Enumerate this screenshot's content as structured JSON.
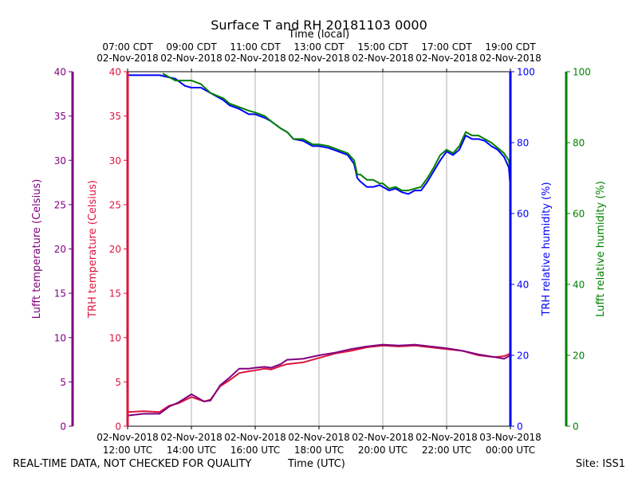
{
  "footer": {
    "quality_note": "REAL-TIME DATA, NOT CHECKED FOR QUALITY",
    "time_label": "Time (UTC)",
    "site": "Site: ISS1"
  },
  "colors": {
    "lufft_temp": "#800080",
    "trh_temp": "#dc143c",
    "trh_rh": "#0000ff",
    "lufft_rh": "#008000",
    "grid": "#b0b0b0"
  },
  "chart_data": {
    "type": "line",
    "title": "Surface T and RH 20181103 0000",
    "x_unit": "hours UTC since 02-Nov-2018 00:00",
    "xlim": [
      12,
      24
    ],
    "top_axis": {
      "label": "Time (local)",
      "ticks": [
        {
          "x": 12,
          "line1": "07:00 CDT",
          "line2": "02-Nov-2018"
        },
        {
          "x": 14,
          "line1": "09:00 CDT",
          "line2": "02-Nov-2018"
        },
        {
          "x": 16,
          "line1": "11:00 CDT",
          "line2": "02-Nov-2018"
        },
        {
          "x": 18,
          "line1": "13:00 CDT",
          "line2": "02-Nov-2018"
        },
        {
          "x": 20,
          "line1": "15:00 CDT",
          "line2": "02-Nov-2018"
        },
        {
          "x": 22,
          "line1": "17:00 CDT",
          "line2": "02-Nov-2018"
        },
        {
          "x": 24,
          "line1": "19:00 CDT",
          "line2": "02-Nov-2018"
        }
      ]
    },
    "bottom_axis": {
      "label": "Time (UTC)",
      "ticks": [
        {
          "x": 12,
          "line1": "02-Nov-2018",
          "line2": "12:00 UTC"
        },
        {
          "x": 14,
          "line1": "02-Nov-2018",
          "line2": "14:00 UTC"
        },
        {
          "x": 16,
          "line1": "02-Nov-2018",
          "line2": "16:00 UTC"
        },
        {
          "x": 18,
          "line1": "02-Nov-2018",
          "line2": "18:00 UTC"
        },
        {
          "x": 20,
          "line1": "02-Nov-2018",
          "line2": "20:00 UTC"
        },
        {
          "x": 22,
          "line1": "02-Nov-2018",
          "line2": "22:00 UTC"
        },
        {
          "x": 24,
          "line1": "03-Nov-2018",
          "line2": "00:00 UTC"
        }
      ]
    },
    "y_axes": {
      "lufft_temp": {
        "label": "Lufft temperature (Celsius)",
        "ylim": [
          0,
          40
        ],
        "ticks": [
          0,
          5,
          10,
          15,
          20,
          25,
          30,
          35,
          40
        ]
      },
      "trh_temp": {
        "label": "TRH temperature (Celsius)",
        "ylim": [
          0,
          40
        ],
        "ticks": [
          0,
          5,
          10,
          15,
          20,
          25,
          30,
          35,
          40
        ]
      },
      "trh_rh": {
        "label": "TRH relative humidity (%)",
        "ylim": [
          0,
          100
        ],
        "ticks": [
          0,
          20,
          40,
          60,
          80,
          100
        ]
      },
      "lufft_rh": {
        "label": "Lufft relative humidity (%)",
        "ylim": [
          0,
          100
        ],
        "ticks": [
          0,
          20,
          40,
          60,
          80,
          100
        ]
      }
    },
    "grid": "vertical",
    "series": [
      {
        "name": "TRH relative humidity",
        "key": "trh_rh",
        "axis": "trh_rh",
        "x": [
          12,
          12.5,
          13,
          13.5,
          13.8,
          14,
          14.3,
          14.6,
          15,
          15.2,
          15.5,
          15.8,
          16,
          16.3,
          16.5,
          16.8,
          17,
          17.2,
          17.5,
          17.8,
          18,
          18.3,
          18.6,
          18.9,
          19.1,
          19.2,
          19.3,
          19.5,
          19.7,
          19.9,
          20,
          20.2,
          20.4,
          20.6,
          20.8,
          21,
          21.2,
          21.4,
          21.6,
          21.8,
          22,
          22.2,
          22.4,
          22.6,
          22.8,
          23,
          23.2,
          23.4,
          23.6,
          23.8,
          23.95,
          24
        ],
        "values": [
          99,
          99,
          99,
          98,
          96,
          95.5,
          95.5,
          94,
          92,
          90.5,
          89.5,
          88,
          88,
          87,
          86,
          84,
          83,
          81,
          80.5,
          79,
          79,
          78.5,
          77.5,
          76.5,
          74,
          70,
          69,
          67.5,
          67.5,
          68,
          67.5,
          66.5,
          67,
          66,
          65.5,
          66.5,
          66.5,
          69,
          72,
          75,
          77.5,
          76.5,
          78,
          82,
          81,
          81,
          80.5,
          79,
          78,
          76,
          73,
          67.5
        ]
      },
      {
        "name": "Lufft relative humidity",
        "key": "lufft_rh",
        "axis": "lufft_rh",
        "x": [
          13.1,
          13.3,
          13.5,
          13.8,
          14,
          14.3,
          14.6,
          15,
          15.2,
          15.5,
          15.8,
          16,
          16.3,
          16.5,
          16.8,
          17,
          17.2,
          17.5,
          17.8,
          18,
          18.3,
          18.6,
          18.9,
          19.1,
          19.2,
          19.3,
          19.5,
          19.7,
          19.9,
          20,
          20.2,
          20.4,
          20.6,
          20.8,
          21,
          21.2,
          21.4,
          21.6,
          21.8,
          22,
          22.2,
          22.4,
          22.6,
          22.8,
          23,
          23.2,
          23.4,
          23.6,
          23.8,
          23.95,
          24
        ],
        "values": [
          99.5,
          98.5,
          97.5,
          97.5,
          97.5,
          96.5,
          94,
          92.5,
          91,
          90,
          89,
          88.5,
          87.5,
          86,
          84,
          83,
          81,
          81,
          79.5,
          79.5,
          79,
          78,
          77,
          75,
          71,
          71,
          69.5,
          69.5,
          68.5,
          68.5,
          67,
          67.5,
          66.5,
          66.5,
          67,
          67.5,
          70,
          73,
          76.5,
          78,
          77,
          79,
          83,
          82,
          82,
          81,
          80,
          78.5,
          77,
          75,
          72
        ]
      },
      {
        "name": "TRH temperature",
        "key": "trh_temp",
        "axis": "trh_temp",
        "x": [
          12,
          12.5,
          13,
          13.3,
          13.6,
          14,
          14.4,
          14.6,
          14.9,
          15.2,
          15.5,
          15.8,
          16,
          16.3,
          16.5,
          16.8,
          17,
          17.5,
          18,
          18.5,
          19,
          19.5,
          20,
          20.5,
          21,
          21.5,
          22,
          22.5,
          23,
          23.5,
          23.8,
          24
        ],
        "values": [
          1.6,
          1.7,
          1.6,
          2.3,
          2.6,
          3.3,
          2.8,
          3.0,
          4.5,
          5.2,
          6.0,
          6.2,
          6.3,
          6.5,
          6.4,
          6.8,
          7.0,
          7.2,
          7.7,
          8.2,
          8.5,
          8.9,
          9.1,
          9.0,
          9.1,
          8.9,
          8.7,
          8.5,
          8.0,
          7.8,
          7.9,
          8.2
        ]
      },
      {
        "name": "Lufft temperature",
        "key": "lufft_temp",
        "axis": "lufft_temp",
        "x": [
          12,
          12.5,
          13,
          13.3,
          13.6,
          14,
          14.4,
          14.6,
          14.9,
          15.2,
          15.5,
          15.8,
          16,
          16.3,
          16.5,
          16.8,
          17,
          17.5,
          18,
          18.5,
          19,
          19.5,
          20,
          20.5,
          21,
          21.5,
          22,
          22.5,
          23,
          23.5,
          23.8,
          24
        ],
        "values": [
          1.2,
          1.4,
          1.4,
          2.2,
          2.7,
          3.6,
          2.8,
          2.9,
          4.6,
          5.5,
          6.5,
          6.5,
          6.6,
          6.7,
          6.6,
          7.0,
          7.5,
          7.6,
          8.0,
          8.3,
          8.7,
          9.0,
          9.2,
          9.1,
          9.2,
          9.0,
          8.8,
          8.5,
          8.1,
          7.8,
          7.6,
          8.0
        ]
      }
    ]
  }
}
